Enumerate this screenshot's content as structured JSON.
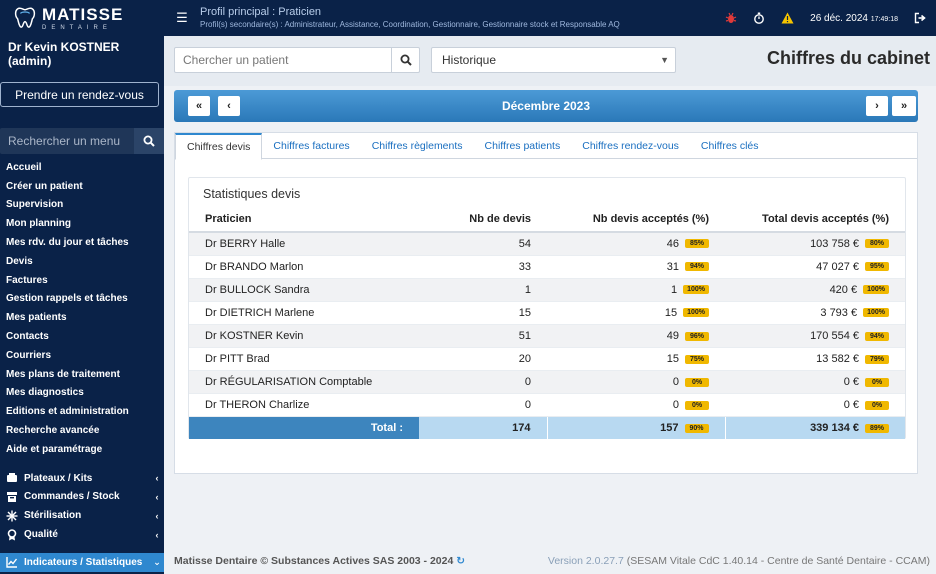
{
  "brand": {
    "name": "MATISSE",
    "sub": "DENTAIRE"
  },
  "sidebar": {
    "user": "Dr Kevin KOSTNER (admin)",
    "rdv_button": "Prendre un rendez-vous",
    "search_placeholder": "Rechercher un menu",
    "items": [
      "Accueil",
      "Créer un patient",
      "Supervision",
      "Mon planning",
      "Mes rdv. du jour et tâches",
      "Devis",
      "Factures",
      "Gestion rappels et tâches",
      "Mes patients",
      "Contacts",
      "Courriers",
      "Mes plans de traitement",
      "Mes diagnostics",
      "Editions et administration",
      "Recherche avancée",
      "Aide et paramétrage"
    ],
    "groups": {
      "g1": "Plateaux / Kits",
      "g2": "Commandes / Stock",
      "g3": "Stérilisation",
      "g4": "Qualité",
      "g5": "Indicateurs / Statistiques"
    }
  },
  "topbar": {
    "profile_main": "Profil principal : Praticien",
    "profile_secondary": "Profil(s) secondaire(s) : Administrateur, Assistance, Coordination, Gestionnaire, Gestionnaire stock et Responsable AQ",
    "date": "26 déc. 2024",
    "time": "17:49:18"
  },
  "header": {
    "patient_search_placeholder": "Chercher un patient",
    "history_select": "Historique",
    "page_title": "Chiffres du cabinet"
  },
  "month_nav": {
    "label": "Décembre 2023",
    "first": "«",
    "prev": "‹",
    "next": "›",
    "last": "»"
  },
  "tabs": [
    "Chiffres devis",
    "Chiffres factures",
    "Chiffres règlements",
    "Chiffres patients",
    "Chiffres rendez-vous",
    "Chiffres clés"
  ],
  "stats": {
    "title": "Statistiques devis",
    "headers": {
      "praticien": "Praticien",
      "nb": "Nb de devis",
      "acc": "Nb devis acceptés (%)",
      "total": "Total devis acceptés (%)"
    },
    "rows": [
      {
        "name": "Dr BERRY Halle",
        "nb": "54",
        "acc": "46",
        "acc_pct": "85%",
        "total": "103 758 €",
        "total_pct": "80%"
      },
      {
        "name": "Dr BRANDO Marlon",
        "nb": "33",
        "acc": "31",
        "acc_pct": "94%",
        "total": "47 027 €",
        "total_pct": "95%"
      },
      {
        "name": "Dr BULLOCK Sandra",
        "nb": "1",
        "acc": "1",
        "acc_pct": "100%",
        "total": "420 €",
        "total_pct": "100%"
      },
      {
        "name": "Dr DIETRICH Marlene",
        "nb": "15",
        "acc": "15",
        "acc_pct": "100%",
        "total": "3 793 €",
        "total_pct": "100%"
      },
      {
        "name": "Dr KOSTNER Kevin",
        "nb": "51",
        "acc": "49",
        "acc_pct": "96%",
        "total": "170 554 €",
        "total_pct": "94%"
      },
      {
        "name": "Dr PITT Brad",
        "nb": "20",
        "acc": "15",
        "acc_pct": "75%",
        "total": "13 582 €",
        "total_pct": "79%"
      },
      {
        "name": "Dr RÉGULARISATION Comptable",
        "nb": "0",
        "acc": "0",
        "acc_pct": "0%",
        "total": "0 €",
        "total_pct": "0%"
      },
      {
        "name": "Dr THERON Charlize",
        "nb": "0",
        "acc": "0",
        "acc_pct": "0%",
        "total": "0 €",
        "total_pct": "0%"
      }
    ],
    "total": {
      "label": "Total :",
      "nb": "174",
      "acc": "157",
      "acc_pct": "90%",
      "total": "339 134 €",
      "total_pct": "89%"
    }
  },
  "footer": {
    "copyright": "Matisse Dentaire © Substances Actives SAS 2003 - 2024",
    "version": "Version 2.0.27.7",
    "details": "(SESAM Vitale CdC 1.40.14 - Centre de Santé Dentaire - CCAM)"
  },
  "colors": {
    "nav": "#0a2248",
    "accent": "#2f88cf",
    "badge": "#f0b800"
  }
}
